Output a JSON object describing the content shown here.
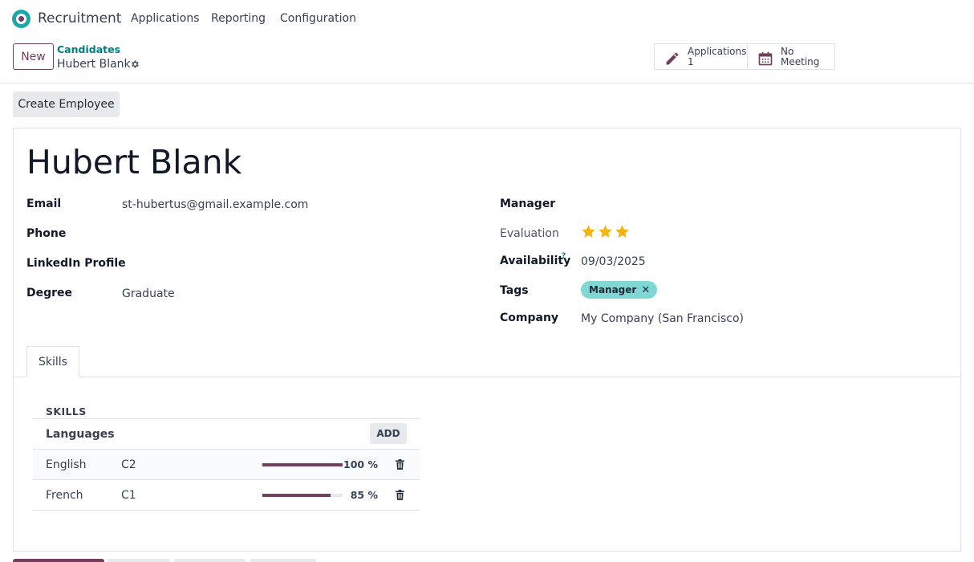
{
  "navbar": {
    "app_name": "Recruitment",
    "menu": [
      "Applications",
      "Reporting",
      "Configuration"
    ]
  },
  "control_panel": {
    "new_label": "New",
    "breadcrumb_parent": "Candidates",
    "breadcrumb_current": "Hubert Blank",
    "stats": [
      {
        "icon": "pencil-icon",
        "label": "Applications",
        "value": "1"
      },
      {
        "icon": "calendar-icon",
        "label": "No Meeting",
        "value": ""
      }
    ]
  },
  "actions": {
    "create_employee_label": "Create Employee"
  },
  "form": {
    "name": "Hubert Blank",
    "left": {
      "email_label": "Email",
      "email_value": "st-hubertus@gmail.example.com",
      "phone_label": "Phone",
      "phone_value": "",
      "linkedin_label": "LinkedIn Profile",
      "linkedin_value": "",
      "degree_label": "Degree",
      "degree_value": "Graduate"
    },
    "right": {
      "manager_label": "Manager",
      "manager_value": "",
      "evaluation_label": "Evaluation",
      "evaluation_stars": 3,
      "evaluation_max": 3,
      "availability_label": "Availability",
      "availability_help": "?",
      "availability_value": "09/03/2025",
      "tags_label": "Tags",
      "tags": [
        "Manager"
      ],
      "company_label": "Company",
      "company_value": "My Company (San Francisco)"
    }
  },
  "tabs": [
    "Skills"
  ],
  "skills": {
    "header": "SKILLS",
    "group": "Languages",
    "add_label": "ADD",
    "rows": [
      {
        "name": "English",
        "level": "C2",
        "progress": 100,
        "progress_label": "100 %"
      },
      {
        "name": "French",
        "level": "C1",
        "progress": 85,
        "progress_label": "85 %"
      }
    ]
  },
  "colors": {
    "brand": "#71405f",
    "link": "#017e84",
    "star": "#f3b416",
    "tag": "#7fd8d3"
  }
}
